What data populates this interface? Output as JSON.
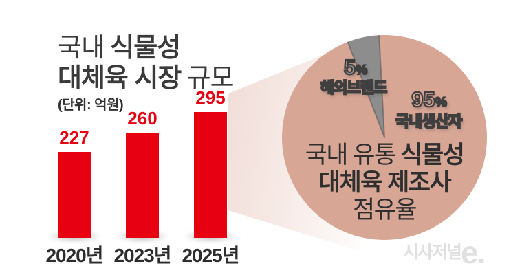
{
  "colors": {
    "accent_red": "#e60012",
    "pie_salmon": "#d7a695",
    "pie_gray": "#8d8d8d",
    "outline_dark": "#3f3f3f",
    "text_dark": "#2f2f2f",
    "cone_pink": "#f0dcd6",
    "logo_gray": "#e0e0e0"
  },
  "bar_chart": {
    "title": {
      "line1_regular": "국내",
      "line1_bold": "식물성",
      "line2_bold": "대체육 시장",
      "line2_regular": "규모"
    },
    "unit": "(단위: 억원)",
    "bars": [
      {
        "value": "227",
        "year": "2020년"
      },
      {
        "value": "260",
        "year": "2023년"
      },
      {
        "value": "295",
        "year": "2025년"
      }
    ]
  },
  "pie_chart": {
    "slice_small": {
      "pct_num": "5",
      "pct_sign": "%",
      "label": "해외브랜드"
    },
    "slice_big": {
      "pct_num": "95",
      "pct_sign": "%",
      "label": "국내생산자"
    },
    "caption": {
      "line1_regular": "국내 유통",
      "line1_bold": "식물성",
      "line2_bold": "대체육 제조사",
      "line3_regular": "점유율"
    }
  },
  "logo": {
    "name": "시사저널",
    "suffix": "e."
  },
  "chart_data": [
    {
      "type": "bar",
      "title": "국내 식물성 대체육 시장 규모",
      "unit_label": "(단위: 억원)",
      "categories": [
        "2020년",
        "2023년",
        "2025년"
      ],
      "values": [
        227,
        260,
        295
      ],
      "value_labels": [
        "227",
        "260",
        "295"
      ],
      "bar_color": "#e60012",
      "ylabel": "억원",
      "grid": false,
      "legend": "none"
    },
    {
      "type": "pie",
      "title": "국내 유통 식물성 대체육 제조사 점유율",
      "labels": [
        "국내생산자",
        "해외브랜드"
      ],
      "values": [
        95,
        5
      ],
      "colors": [
        "#d7a695",
        "#8d8d8d"
      ],
      "start_angle_deg": -21,
      "legend": "inside"
    }
  ]
}
